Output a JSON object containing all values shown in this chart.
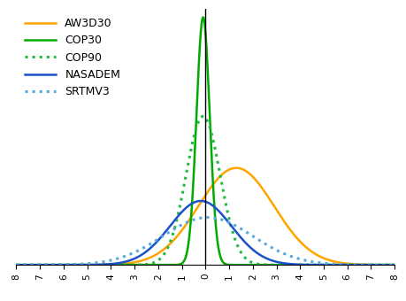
{
  "title": "",
  "xlim": [
    -8,
    8
  ],
  "ylim": [
    0,
    0.62
  ],
  "xticks": [
    -8,
    -7,
    -6,
    -5,
    -4,
    -3,
    -2,
    -1,
    0,
    1,
    2,
    3,
    4,
    5,
    6,
    7,
    8
  ],
  "series": [
    {
      "name": "AW3D30",
      "color": "#FFA500",
      "linestyle": "solid",
      "linewidth": 1.8,
      "mu": 1.3,
      "sigma": 1.6,
      "scale": 0.235
    },
    {
      "name": "COP30",
      "color": "#00AA00",
      "linestyle": "solid",
      "linewidth": 1.8,
      "mu": -0.1,
      "sigma": 0.28,
      "scale": 0.6
    },
    {
      "name": "COP90",
      "color": "#22BB44",
      "linestyle": "dotted",
      "linewidth": 2.2,
      "mu": -0.1,
      "sigma": 0.72,
      "scale": 0.36
    },
    {
      "name": "NASADEM",
      "color": "#1A52C8",
      "linestyle": "solid",
      "linewidth": 1.8,
      "mu": -0.2,
      "sigma": 1.3,
      "scale": 0.155
    },
    {
      "name": "SRTMV3",
      "color": "#55AADD",
      "linestyle": "dotted",
      "linewidth": 2.2,
      "mu": 0.1,
      "sigma": 1.9,
      "scale": 0.115
    }
  ],
  "legend_fontsize": 9,
  "tick_fontsize": 7.5,
  "background_color": "#ffffff"
}
